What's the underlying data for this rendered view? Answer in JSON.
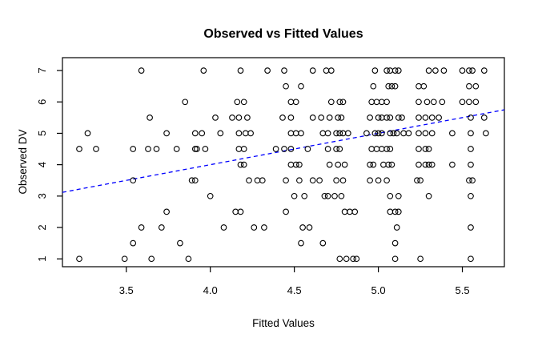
{
  "figure": {
    "title": "Observed vs Fitted Values",
    "x_axis_label": "Fitted Values",
    "y_axis_label": "Observed DV"
  },
  "chart_data": {
    "type": "scatter",
    "title": "Observed vs Fitted Values",
    "xlabel": "Fitted Values",
    "ylabel": "Observed DV",
    "xlim": [
      3.12,
      5.75
    ],
    "ylim": [
      0.75,
      7.41
    ],
    "x_ticks": [
      3.5,
      4.0,
      4.5,
      5.0,
      5.5
    ],
    "x_tick_labels": [
      "3.5",
      "4.0",
      "4.5",
      "5.0",
      "5.5"
    ],
    "y_ticks": [
      1,
      2,
      3,
      4,
      5,
      6,
      7
    ],
    "y_tick_labels": [
      "1",
      "2",
      "3",
      "4",
      "5",
      "6",
      "7"
    ],
    "grid": false,
    "legend": "none",
    "marker": "open-circle",
    "marker_color": "#000000",
    "rows": [
      {
        "y": 7,
        "x": [
          3.59,
          3.96,
          4.18,
          4.34,
          4.44,
          4.61,
          4.69,
          4.72,
          4.98,
          5.05,
          5.07,
          5.1,
          5.12,
          5.3,
          5.34,
          5.39,
          5.5,
          5.54,
          5.56,
          5.63
        ]
      },
      {
        "y": 6.5,
        "x": [
          4.45,
          4.54,
          4.97,
          5.06,
          5.08,
          5.1,
          5.24,
          5.27,
          5.54,
          5.58
        ]
      },
      {
        "y": 6,
        "x": [
          3.85,
          4.16,
          4.2,
          4.48,
          4.51,
          4.72,
          4.77,
          4.79,
          4.96,
          4.99,
          5.02,
          5.05,
          5.24,
          5.29,
          5.33,
          5.38,
          5.5,
          5.54,
          5.58
        ]
      },
      {
        "y": 5.5,
        "x": [
          3.64,
          4.03,
          4.13,
          4.17,
          4.22,
          4.43,
          4.48,
          4.61,
          4.66,
          4.71,
          4.76,
          4.78,
          4.95,
          5.0,
          5.02,
          5.05,
          5.07,
          5.12,
          5.14,
          5.24,
          5.28,
          5.32,
          5.36,
          5.55,
          5.63
        ]
      },
      {
        "y": 5,
        "x": [
          3.27,
          3.74,
          3.91,
          3.95,
          4.06,
          4.17,
          4.21,
          4.24,
          4.48,
          4.51,
          4.54,
          4.67,
          4.7,
          4.75,
          4.77,
          4.79,
          4.82,
          4.93,
          4.98,
          5.0,
          5.02,
          5.07,
          5.09,
          5.11,
          5.15,
          5.18,
          5.24,
          5.28,
          5.32,
          5.44,
          5.55,
          5.64
        ]
      },
      {
        "y": 4.5,
        "x": [
          3.22,
          3.32,
          3.54,
          3.63,
          3.68,
          3.8,
          3.91,
          3.92,
          3.97,
          4.17,
          4.2,
          4.39,
          4.44,
          4.48,
          4.58,
          4.7,
          4.75,
          4.77,
          4.96,
          4.99,
          5.02,
          5.05,
          5.07,
          5.24,
          5.28,
          5.3,
          5.55
        ]
      },
      {
        "y": 4,
        "x": [
          4.18,
          4.2,
          4.48,
          4.51,
          4.53,
          4.71,
          4.76,
          4.8,
          4.95,
          4.97,
          5.03,
          5.06,
          5.08,
          5.24,
          5.28,
          5.3,
          5.32,
          5.44,
          5.55
        ]
      },
      {
        "y": 3.5,
        "x": [
          3.54,
          3.89,
          3.91,
          4.23,
          4.28,
          4.31,
          4.45,
          4.53,
          4.61,
          4.65,
          4.75,
          4.79,
          4.95,
          5.0,
          5.05,
          5.23,
          5.25,
          5.54,
          5.56
        ]
      },
      {
        "y": 3,
        "x": [
          4.0,
          4.5,
          4.56,
          4.68,
          4.7,
          4.74,
          4.78,
          5.07,
          5.12,
          5.3,
          5.55
        ]
      },
      {
        "y": 2.5,
        "x": [
          3.74,
          4.15,
          4.18,
          4.45,
          4.8,
          4.83,
          4.86,
          5.07,
          5.1,
          5.12
        ]
      },
      {
        "y": 2,
        "x": [
          3.59,
          3.71,
          4.08,
          4.26,
          4.32,
          4.55,
          4.59,
          5.11,
          5.55
        ]
      },
      {
        "y": 1.5,
        "x": [
          3.54,
          3.82,
          4.54,
          4.67,
          5.1
        ]
      },
      {
        "y": 1,
        "x": [
          3.22,
          3.49,
          3.65,
          3.87,
          4.77,
          4.81,
          4.85,
          4.87,
          5.1,
          5.25,
          5.55
        ]
      }
    ],
    "trend_line": {
      "style": "dashed",
      "color": "#0000ff",
      "x": [
        3.12,
        5.75
      ],
      "y": [
        3.12,
        5.75
      ]
    }
  }
}
